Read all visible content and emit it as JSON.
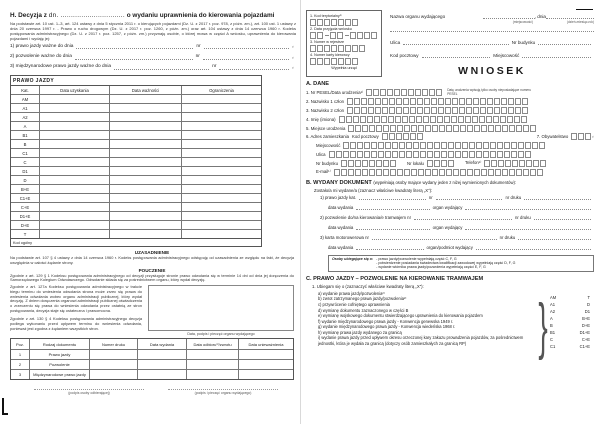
{
  "left_page": {
    "title": {
      "bold_prefix": "H. Decyzja z",
      "dn": "dn. ...............................",
      "bold_suffix": "o wydaniu uprawnienia do kierowania pojazdami"
    },
    "legal_basis": "Na podstawie art. 10 ust. 1–3, art. 124 ustawy z dnia 5 stycznia 2011 r. o kierujących pojazdami (Dz. U. z 2017 r. poz. 978, z późn. zm.), art. 100 ust. 1 ustawy z dnia 20 czerwca 1997 r. - Prawo o ruchu drogowym (Dz. U. z 2017 r. poz. 1260, z późn. zm.) oraz art. 104 ustawy z dnia 14 czerwca 1960 r. Kodeks postępowania administracyjnego (Dz. U. z 2017 r. poz. 1257, z późn. zm.) przyznaję osobie, o której mowa w części A wniosku, uprawnienia do kierowania pojazdami i wydaję jej:",
    "issue_lines": [
      {
        "text": "1) prawo jazdy ważne do dnia",
        "nr": "nr",
        "sup": "¹⁾"
      },
      {
        "text": "2) pozwolenie ważne do dnia",
        "nr": "nr",
        "sup": "¹⁾"
      },
      {
        "text": "3) międzynarodowe prawo jazdy ważne do dnia",
        "nr": "nr",
        "sup": "¹⁾"
      }
    ],
    "license_table": {
      "title": "PRAWO JAZDY",
      "headers": [
        "Kat.",
        "Data uzyskania",
        "Data ważności",
        "Ograniczenia"
      ],
      "categories": [
        "AM",
        "A1",
        "A2",
        "A",
        "B1",
        "B",
        "C1",
        "C",
        "D1",
        "D",
        "B+E",
        "C1+E",
        "C+E",
        "D1+E",
        "D+E",
        "T"
      ],
      "footer": "Kod ogólny"
    },
    "uzasadnienie": {
      "title": "UZASADNIENIE",
      "text": "Na podstawie art. 107 § 4 ustawy z dnia 14 czerwca 1960 r. Kodeks postępowania administracyjnego odstępuję od uzasadnienia ze względu na fakt, że decyzja uwzględnia w całości żądanie strony."
    },
    "pouczenie": {
      "title": "POUCZENIE",
      "p1": "Zgodnie z art. 129 § 1 Kodeksu postępowania administracyjnego od decyzji przysługuje stronie prawo odwołania się w terminie 14 dni od dnia jej doręczenia do Samorządowego Kolegium Odwoławczego. Odwołanie składa się za pośrednictwem organu, który wydał decyzję.",
      "p2": "Zgodnie z art. 127a Kodeksu postępowania administracyjnego w trakcie biegu terminu do wniesienia odwołania strona może zrzec się prawa do wniesienia odwołania wobec organu administracji publicznej, który wydał decyzję. Z dniem doręczenia organowi administracji publicznej oświadczenia o zrzeczeniu się prawa do wniesienia odwołania przez ostatnią ze stron postępowania, decyzja staje się ostateczna i prawomocna.",
      "p3": "Zgodnie z art. 130 § 4 Kodeksu postępowania administracyjnego decyzja podlega wykonaniu przed upływem terminu do wniesienia odwołania, ponieważ jest zgodna z żądaniem wszystkich stron."
    },
    "stamp_box_caption": "Data, podpis i pieczęć organu wydającego",
    "documents_table": {
      "headers": [
        "Poz.",
        "Rodzaj dokumentu",
        "Numer druku",
        "Data wydania",
        "Data odbioru¹⁾/zwrotu",
        "Data unieważnienia"
      ],
      "rows": [
        {
          "poz": "1",
          "name": "Prawo jazdy"
        },
        {
          "poz": "2",
          "name": "Pozwolenie"
        },
        {
          "poz": "3",
          "name": "Międzynarodowe prawo jazdy"
        }
      ]
    },
    "signatures": {
      "left": "(podpis osoby odbierającej)",
      "right": "(podpis i pieczęć organu wydającego)"
    }
  },
  "right_page": {
    "office_box": {
      "fields": [
        {
          "label": "1. Kod terytorialny¹⁾",
          "group": "7"
        },
        {
          "label": "2. Data przyjęcia wniosku",
          "group": "2-2-4"
        },
        {
          "label": "3. Numer w rejestrze",
          "group": "8"
        },
        {
          "label": "4. Numer karty kierowcy",
          "group": "7"
        }
      ],
      "caption": "Wypełnia urząd"
    },
    "header": {
      "org_label": "Nazwa organu wydającego",
      "dnia": ", dnia",
      "place_caption": "(miejscowość)",
      "date_caption": "(dzień-miesiąc-rok)",
      "ulica": "Ulica",
      "nr_budynku": "Nr budynku",
      "kod_pocztowy": "Kod pocztowy",
      "miejscowosc": "Miejscowość"
    },
    "form_title": "WNIOSEK",
    "section_a": {
      "title": "A. DANE",
      "pesel": {
        "label": "1. Nr PESEL/Data urodzenia¹⁾",
        "cells": 11,
        "note": "Datę urodzenia wpisują tylko osoby nieposiadające numeru PESEL"
      },
      "rows": [
        {
          "label": "2. Nazwisko 1 człon",
          "cells": 26
        },
        {
          "label": "3. Nazwisko 2 człon",
          "cells": 26
        },
        {
          "label": "4. Imię (imiona)",
          "cells": 27
        },
        {
          "label": "5. Miejsce urodzenia",
          "cells": 27
        }
      ],
      "address": {
        "label": "6. Adres zamieszkania",
        "kod_label": "Kod pocztowy",
        "kod_cells": 6,
        "obyw_label": "7. Obywatelstwo",
        "obyw_cells": 3,
        "obyw_sup": "¹⁾"
      },
      "rows2": [
        {
          "label": "Miejscowość",
          "cells": 29
        },
        {
          "label": "Ulica",
          "cells": 29
        }
      ],
      "building": {
        "nr_budynku": "Nr budynku",
        "nb_cells": 8,
        "nr_lokalu": "Nr lokalu",
        "nl_cells": 4,
        "telefon": "Telefon¹⁾",
        "tel_cells": 9
      },
      "email": {
        "label": "E-mail¹⁾",
        "cells": 30
      }
    },
    "section_b": {
      "title": "B. WYDANY DOKUMENT",
      "title_note": "(wypełniają osoby mające wydany jeden z niżej wymienionych dokumentów):",
      "subtitle": "Zostało/a mi wydane/a (zaznacz właściwe kwadraty literą „X”):",
      "entries": [
        {
          "l1a": "1) prawo jazdy kat.",
          "l1b": "nr",
          "l1c": "nr druku",
          "l2a": "data wydania",
          "l2b": "organ wydający"
        },
        {
          "l1a": "2) pozwolenie do/na kierowania/e tramwajem nr",
          "l1c": "nr druku",
          "l2a": "data wydania",
          "l2b": "organ wydający"
        },
        {
          "l1a": "3) karta motorowerowa nr",
          "l1c": "nr druku",
          "l2a": "data wydania",
          "l2b": "organ/podmiot wydający"
        }
      ]
    },
    "info_box": {
      "lead": "Osoby ubiegające się o:",
      "lines": [
        "- prawo jazdy/pozwolenie wypełniają część C, F, G",
        "- potwierdzenie posiadania świadectwa kwalifikacji zawodowej wypełniają część D, F, G",
        "- wydanie wtórnika prawa jazdy/pozwolenia wypełniają części E, F, G"
      ]
    },
    "section_c": {
      "title": "C. PRAWO JAZDY – POZWOLENIE NA KIEROWANIE TRAMWAJEM",
      "intro": "1. Ubiegam się o (zaznaczyć właściwe kwadraty literą „X”):",
      "items": [
        "a) wydanie prawa jazdy/pozwolenia²⁾",
        "b) zwrot zatrzymanego prawa jazdy/pozwolenia²⁾",
        "c) przywrócenie cofniętego uprawnienia",
        "d) wymianę dokumentu zaznaczonego w części B",
        "e) wymianę wojskowego dokumentu stwierdzającego uprawnienia do kierowania pojazdem",
        "f) wydanie międzynarodowego prawa jazdy - Konwencja genewska 1949 r.",
        "g) wydanie międzynarodowego prawa jazdy - Konwencja wiedeńska 1968 r.",
        "h) wymianę prawa jazdy wydanego za granicą",
        "i) wydanie prawa jazdy przed upływem okresu orzeczonej kary zakazu prowadzenia pojazdów, za pośrednictwem jednostki, która je wydała za granicą (dotyczy osób zamieszkałych za granicą RP)"
      ],
      "categories": [
        {
          "l": "AM",
          "r": "T"
        },
        {
          "l": "A1",
          "r": "D"
        },
        {
          "l": "A2",
          "r": "D1"
        },
        {
          "l": "A",
          "r": "B+E"
        },
        {
          "l": "B",
          "r": "D+E"
        },
        {
          "l": "B1",
          "r": "D1+E"
        },
        {
          "l": "C",
          "r": "C+E"
        },
        {
          "l": "C1",
          "r": "C1+E"
        }
      ]
    }
  }
}
